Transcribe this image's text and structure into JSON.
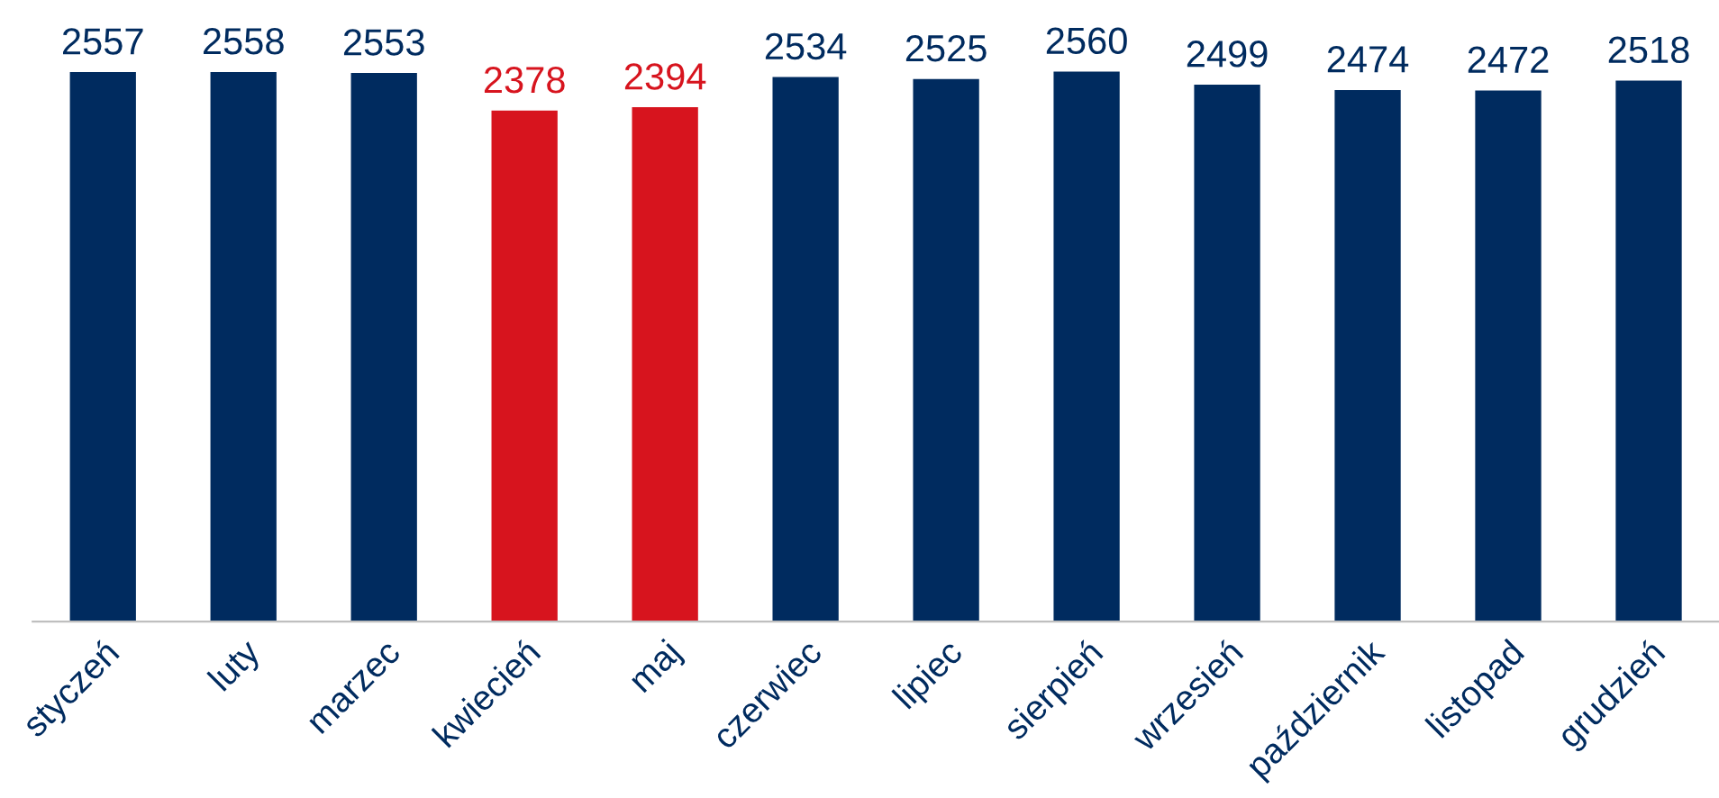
{
  "chart_data": {
    "type": "bar",
    "categories": [
      "styczeń",
      "luty",
      "marzec",
      "kwiecień",
      "maj",
      "czerwiec",
      "lipiec",
      "sierpień",
      "wrzesień",
      "październik",
      "listopad",
      "grudzień"
    ],
    "values": [
      2557,
      2558,
      2553,
      2378,
      2394,
      2534,
      2525,
      2560,
      2499,
      2474,
      2472,
      2518
    ],
    "colors": [
      "#002b5f",
      "#002b5f",
      "#002b5f",
      "#d7141e",
      "#d7141e",
      "#002b5f",
      "#002b5f",
      "#002b5f",
      "#002b5f",
      "#002b5f",
      "#002b5f",
      "#002b5f"
    ],
    "data_labels": true,
    "grid": false,
    "legend": false,
    "tick_labels": "x"
  }
}
